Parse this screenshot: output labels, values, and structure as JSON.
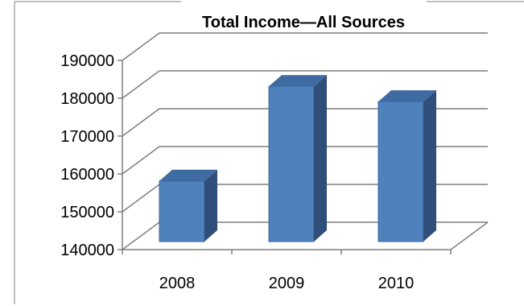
{
  "chart_data": {
    "type": "bar",
    "title": "Total Income—All Sources",
    "categories": [
      "2008",
      "2009",
      "2010"
    ],
    "values": [
      156000,
      181000,
      177000
    ],
    "ylim": [
      140000,
      190000
    ],
    "yticks": [
      "140000",
      "150000",
      "160000",
      "170000",
      "180000",
      "190000"
    ],
    "grid": true,
    "xlabel": "",
    "ylabel": "",
    "colors": {
      "bar_front": "#4f81bd",
      "bar_side": "#2f4f7a",
      "bar_top": "#3f6aa2",
      "grid": "#7f7f7f",
      "frame": "#7f7f7f"
    }
  }
}
